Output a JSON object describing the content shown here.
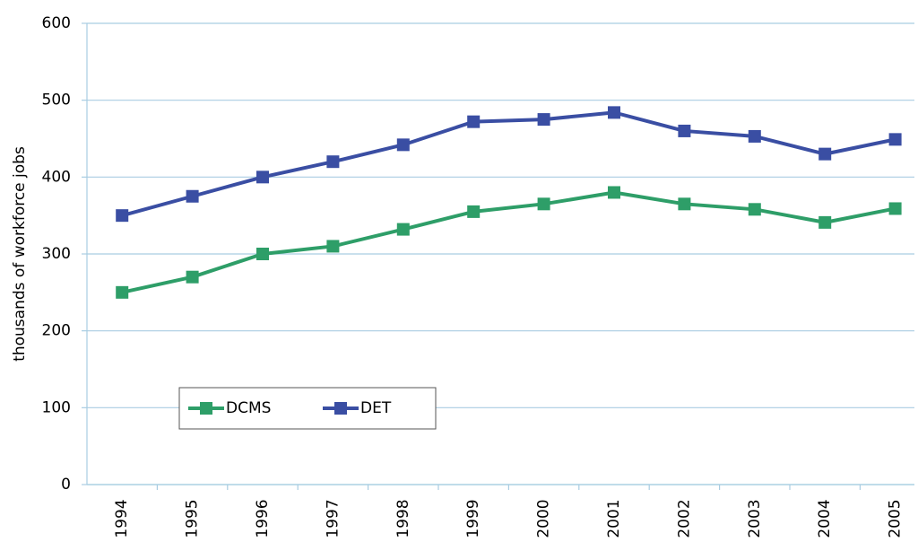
{
  "chart_data": {
    "type": "line",
    "y_label": "thousands of workforce jobs",
    "categories": [
      "1994",
      "1995",
      "1996",
      "1997",
      "1998",
      "1999",
      "2000",
      "2001",
      "2002",
      "2003",
      "2004",
      "2005"
    ],
    "series": [
      {
        "name": "DCMS",
        "color": "#2e9e68",
        "values": [
          250,
          270,
          300,
          310,
          332,
          355,
          365,
          380,
          365,
          358,
          341,
          359
        ]
      },
      {
        "name": "DET",
        "color": "#3a4ea3",
        "values": [
          350,
          375,
          400,
          420,
          442,
          472,
          475,
          484,
          460,
          453,
          430,
          449
        ]
      }
    ],
    "ylim": [
      0,
      600
    ],
    "yticks": [
      0,
      100,
      200,
      300,
      400,
      500,
      600
    ],
    "grid": true
  }
}
